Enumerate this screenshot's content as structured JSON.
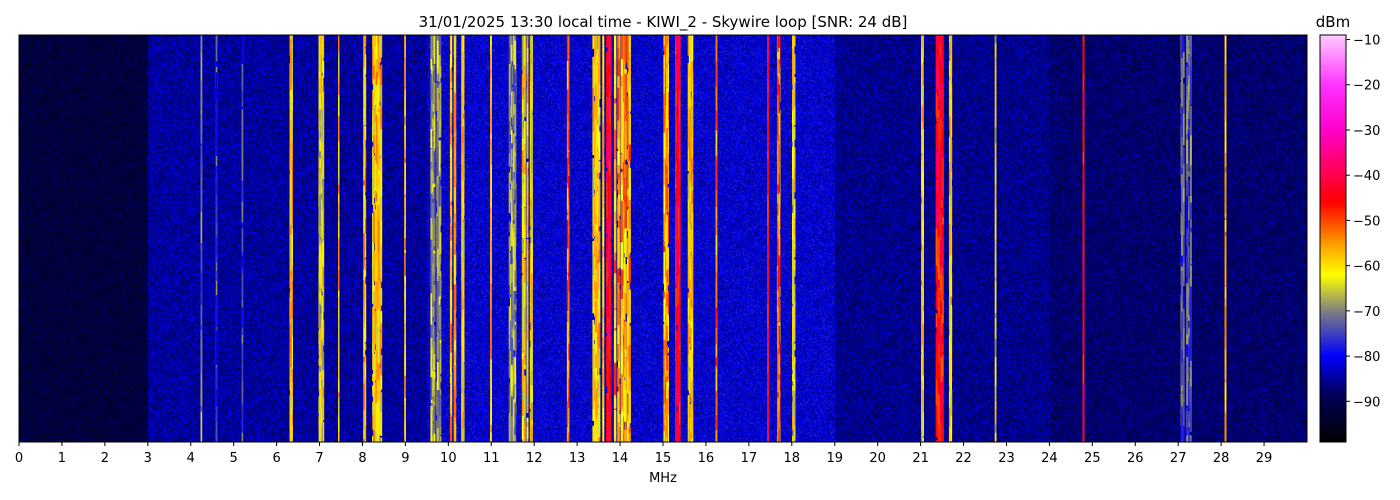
{
  "chart_data": {
    "type": "heatmap",
    "title": "31/01/2025 13:30 local time - KIWI_2 - Skywire loop [SNR: 24 dB]",
    "xlabel": "MHz",
    "ylabel": "",
    "xlim": [
      0,
      30
    ],
    "x_ticks": [
      "0",
      "1",
      "2",
      "3",
      "4",
      "5",
      "6",
      "7",
      "8",
      "9",
      "10",
      "11",
      "12",
      "13",
      "14",
      "15",
      "16",
      "17",
      "18",
      "19",
      "20",
      "21",
      "22",
      "23",
      "24",
      "25",
      "26",
      "27",
      "28",
      "29"
    ],
    "colorbar": {
      "label": "dBm",
      "range": [
        -99,
        -9
      ],
      "ticks": [
        "-10",
        "-20",
        "-30",
        "-40",
        "-50",
        "-60",
        "-70",
        "-80",
        "-90"
      ],
      "colormap": [
        {
          "dbm": -99,
          "color": "#000000"
        },
        {
          "dbm": -88,
          "color": "#000060"
        },
        {
          "dbm": -80,
          "color": "#0000ff"
        },
        {
          "dbm": -70,
          "color": "#808080"
        },
        {
          "dbm": -62,
          "color": "#ffff00"
        },
        {
          "dbm": -55,
          "color": "#ff9900"
        },
        {
          "dbm": -46,
          "color": "#ff0000"
        },
        {
          "dbm": -30,
          "color": "#ff00cc"
        },
        {
          "dbm": -20,
          "color": "#ff33ff"
        },
        {
          "dbm": -9,
          "color": "#ffccff"
        }
      ]
    },
    "noise_floor_dbm": [
      {
        "from": 0,
        "to": 3,
        "dbm": -92
      },
      {
        "from": 3,
        "to": 9.5,
        "dbm": -85
      },
      {
        "from": 9.5,
        "to": 19,
        "dbm": -82
      },
      {
        "from": 19,
        "to": 24,
        "dbm": -86
      },
      {
        "from": 24,
        "to": 30,
        "dbm": -88
      }
    ],
    "signals": [
      {
        "mhz": 4.25,
        "width": 0.04,
        "dbm": -74
      },
      {
        "mhz": 4.6,
        "width": 0.03,
        "dbm": -78
      },
      {
        "mhz": 5.2,
        "width": 0.03,
        "dbm": -78
      },
      {
        "mhz": 6.35,
        "width": 0.1,
        "dbm": -62
      },
      {
        "mhz": 7.05,
        "width": 0.15,
        "dbm": -66
      },
      {
        "mhz": 7.45,
        "width": 0.04,
        "dbm": -62
      },
      {
        "mhz": 8.05,
        "width": 0.1,
        "dbm": -60
      },
      {
        "mhz": 8.35,
        "width": 0.3,
        "dbm": -62
      },
      {
        "mhz": 9.0,
        "width": 0.05,
        "dbm": -60
      },
      {
        "mhz": 9.7,
        "width": 0.3,
        "dbm": -70
      },
      {
        "mhz": 10.1,
        "width": 0.2,
        "dbm": -60
      },
      {
        "mhz": 10.35,
        "width": 0.1,
        "dbm": -62
      },
      {
        "mhz": 11.0,
        "width": 0.06,
        "dbm": -60
      },
      {
        "mhz": 11.5,
        "width": 0.2,
        "dbm": -72
      },
      {
        "mhz": 11.85,
        "width": 0.3,
        "dbm": -64
      },
      {
        "mhz": 12.8,
        "width": 0.08,
        "dbm": -55
      },
      {
        "mhz": 13.5,
        "width": 0.3,
        "dbm": -62
      },
      {
        "mhz": 13.75,
        "width": 0.15,
        "dbm": -46
      },
      {
        "mhz": 14.05,
        "width": 0.4,
        "dbm": -58
      },
      {
        "mhz": 15.1,
        "width": 0.2,
        "dbm": -58
      },
      {
        "mhz": 15.35,
        "width": 0.15,
        "dbm": -46
      },
      {
        "mhz": 15.65,
        "width": 0.15,
        "dbm": -62
      },
      {
        "mhz": 16.25,
        "width": 0.05,
        "dbm": -56
      },
      {
        "mhz": 17.45,
        "width": 0.05,
        "dbm": -46
      },
      {
        "mhz": 17.7,
        "width": 0.1,
        "dbm": -55
      },
      {
        "mhz": 18.05,
        "width": 0.1,
        "dbm": -64
      },
      {
        "mhz": 21.05,
        "width": 0.1,
        "dbm": -62
      },
      {
        "mhz": 21.45,
        "width": 0.25,
        "dbm": -48
      },
      {
        "mhz": 21.7,
        "width": 0.1,
        "dbm": -62
      },
      {
        "mhz": 22.75,
        "width": 0.04,
        "dbm": -66
      },
      {
        "mhz": 24.8,
        "width": 0.06,
        "dbm": -46
      },
      {
        "mhz": 27.2,
        "width": 0.3,
        "dbm": -76
      },
      {
        "mhz": 28.1,
        "width": 0.03,
        "dbm": -60
      }
    ]
  }
}
